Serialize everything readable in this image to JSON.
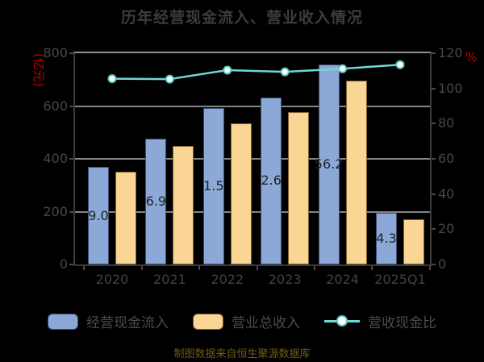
{
  "title": "历年经营现金流入、营业收入情况",
  "left_axis": {
    "unit": "(亿元)",
    "ticks": [
      "0",
      "200",
      "400",
      "600",
      "800"
    ]
  },
  "right_axis": {
    "unit": "%",
    "ticks": [
      "0",
      "20",
      "40",
      "60",
      "80",
      "100",
      "120"
    ]
  },
  "footer": "制图数据来自恒生聚源数据库",
  "colors": {
    "background": "#000000",
    "title_text": "#3c3c3c",
    "axis_text": "#474747",
    "gridline": "#858585",
    "bar_blue": "#8ba8d7",
    "bar_orange": "#fbd594",
    "ratio_line": "#72d6d0",
    "marker_fill": "#ffffff",
    "unit_text": "#c40000",
    "footer_text": "#6f5c15"
  },
  "chart_data": {
    "type": "bar",
    "subtype": "grouped bars with overlay line",
    "categories": [
      "2020",
      "2021",
      "2022",
      "2023",
      "2024",
      "2025Q1"
    ],
    "series": [
      {
        "name": "经营现金流入",
        "type": "bar",
        "axis": "left",
        "color": "#8ba8d7",
        "values": [
          369.0,
          476.9,
          591.5,
          632.6,
          756.2,
          194.3
        ],
        "visible_bar_labels": [
          "9.0",
          "6.9",
          "1.5",
          "2.6",
          "56.2",
          "4.3"
        ]
      },
      {
        "name": "营业总收入",
        "type": "bar",
        "axis": "left",
        "color": "#fbd594",
        "values": [
          350,
          450,
          533,
          578,
          695,
          171
        ]
      },
      {
        "name": "营收现金比",
        "type": "line",
        "axis": "right",
        "color": "#72d6d0",
        "values": [
          105.5,
          105.3,
          110.4,
          109.4,
          111.2,
          113.5
        ]
      }
    ],
    "title": "历年经营现金流入、营业收入情况",
    "ylabel_left": "(亿元)",
    "ylabel_right": "%",
    "left_ylim": [
      0,
      800
    ],
    "right_ylim": [
      0,
      120
    ],
    "grid": true,
    "legend_position": "bottom"
  }
}
